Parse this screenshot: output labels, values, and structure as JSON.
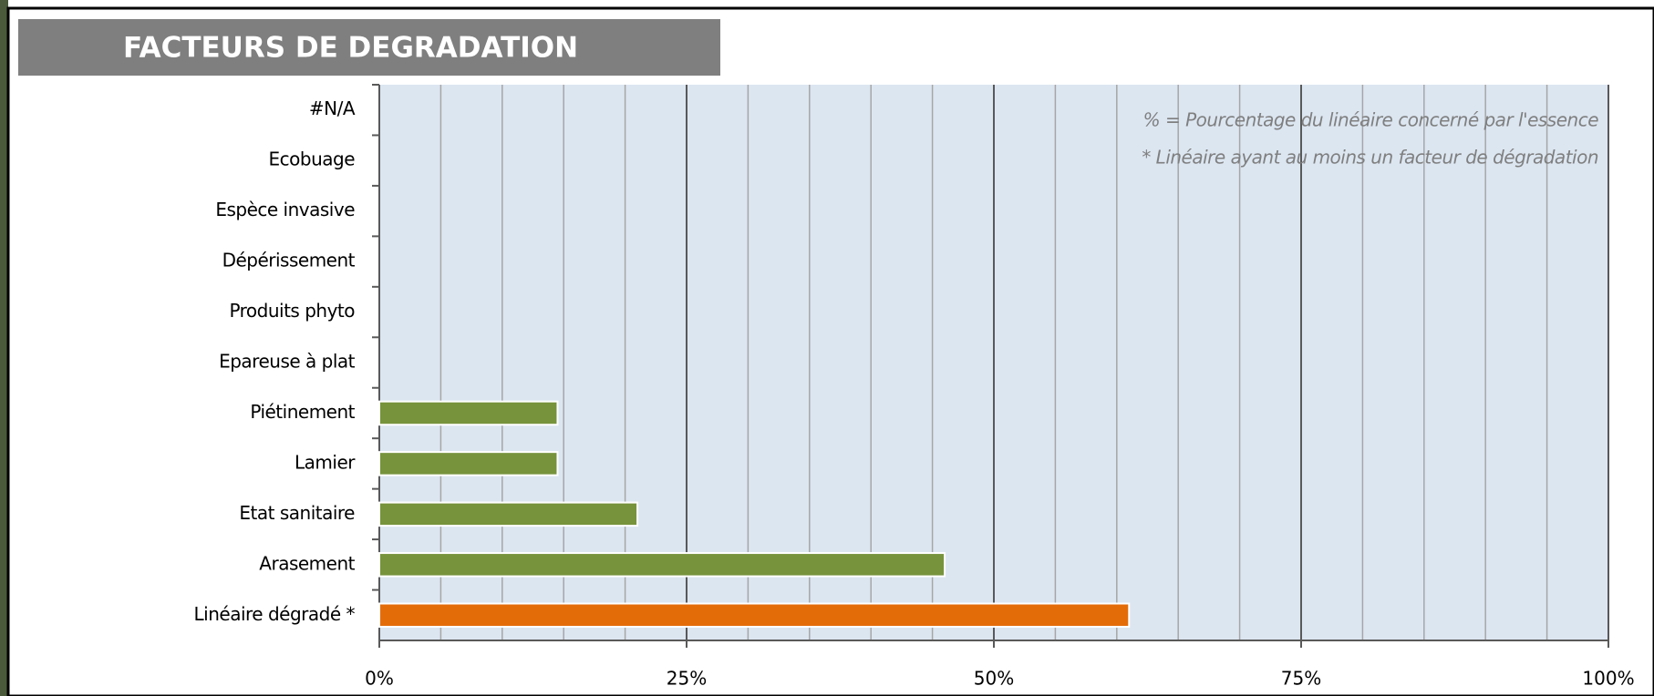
{
  "chart_data": {
    "type": "hbar",
    "title": "FACTEURS DE DEGRADATION",
    "annotations": [
      "% = Pourcentage du linéaire concerné par l'essence",
      "* Linéaire ayant au moins un facteur de dégradation"
    ],
    "categories": [
      "#N/A",
      "Ecobuage",
      "Espèce invasive",
      "Dépérissement",
      "Produits phyto",
      "Epareuse à plat",
      "Piétinement",
      "Lamier",
      "Etat sanitaire",
      "Arasement",
      "Linéaire dégradé *"
    ],
    "values": [
      0,
      0,
      0,
      0,
      0,
      0,
      14.5,
      14.5,
      21,
      46,
      61
    ],
    "colors": [
      "#77933c",
      "#77933c",
      "#77933c",
      "#77933c",
      "#77933c",
      "#77933c",
      "#77933c",
      "#77933c",
      "#77933c",
      "#77933c",
      "#e36c09"
    ],
    "xlim": [
      0,
      100
    ],
    "xticks": [
      {
        "value": 0,
        "label": "0%"
      },
      {
        "value": 25,
        "label": "25%"
      },
      {
        "value": 50,
        "label": "50%"
      },
      {
        "value": 75,
        "label": "75%"
      },
      {
        "value": 100,
        "label": "100%"
      }
    ],
    "minor_grid_step": 5,
    "grid": true
  }
}
